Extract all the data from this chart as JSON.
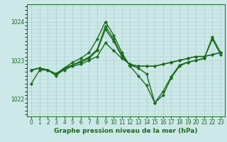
{
  "title": "Graphe pression niveau de la mer (hPa)",
  "bg_color": "#cce8e8",
  "line_color": "#1a6b1a",
  "grid_color": "#aacfcf",
  "xlim": [
    -0.5,
    23.5
  ],
  "ylim": [
    1021.55,
    1024.45
  ],
  "yticks": [
    1022,
    1023,
    1024
  ],
  "xticks": [
    0,
    1,
    2,
    3,
    4,
    5,
    6,
    7,
    8,
    9,
    10,
    11,
    12,
    13,
    14,
    15,
    16,
    17,
    18,
    19,
    20,
    21,
    22,
    23
  ],
  "series": [
    {
      "x": [
        0,
        1,
        2,
        3,
        4,
        5,
        6,
        7,
        8,
        9,
        10,
        11,
        12,
        13,
        14,
        15,
        16,
        17,
        18,
        19,
        20,
        21,
        22,
        23
      ],
      "y": [
        1022.75,
        1022.8,
        1022.75,
        1022.65,
        1022.75,
        1022.85,
        1022.9,
        1023.0,
        1023.1,
        1023.45,
        1023.25,
        1023.05,
        1022.9,
        1022.85,
        1022.85,
        1022.85,
        1022.9,
        1022.95,
        1023.0,
        1023.05,
        1023.1,
        1023.1,
        1023.15,
        1023.2
      ]
    },
    {
      "x": [
        0,
        1,
        2,
        3,
        4,
        5,
        6,
        7,
        8,
        9,
        10,
        11,
        12,
        13,
        14,
        15,
        16,
        17,
        18,
        19,
        20,
        21,
        22,
        23
      ],
      "y": [
        1022.75,
        1022.8,
        1022.75,
        1022.65,
        1022.8,
        1022.95,
        1023.05,
        1023.2,
        1023.55,
        1024.0,
        1023.65,
        1023.2,
        1022.85,
        1022.6,
        1022.35,
        1021.9,
        1022.1,
        1022.55,
        1022.85,
        1022.95,
        1023.0,
        1023.05,
        1023.6,
        1023.2
      ]
    },
    {
      "x": [
        0,
        1,
        2,
        3,
        4,
        5,
        6,
        7,
        8,
        9,
        10,
        11,
        12,
        13,
        14,
        15,
        16,
        17,
        18,
        19,
        20,
        21,
        22,
        23
      ],
      "y": [
        1022.75,
        1022.8,
        1022.75,
        1022.65,
        1022.8,
        1022.88,
        1022.95,
        1023.05,
        1023.25,
        1023.8,
        1023.5,
        1023.1,
        1022.88,
        1022.85,
        1022.85,
        1022.85,
        1022.9,
        1022.95,
        1023.0,
        1023.05,
        1023.1,
        1023.1,
        1023.15,
        1023.2
      ]
    },
    {
      "x": [
        0,
        1,
        2,
        3,
        4,
        5,
        6,
        7,
        8,
        9,
        10,
        11,
        12,
        13,
        14,
        15,
        16,
        17,
        18,
        19,
        20,
        21,
        22,
        23
      ],
      "y": [
        1022.4,
        1022.75,
        1022.75,
        1022.6,
        1022.78,
        1022.88,
        1022.98,
        1023.08,
        1023.28,
        1023.88,
        1023.55,
        1023.12,
        1022.88,
        1022.8,
        1022.65,
        1021.9,
        1022.2,
        1022.58,
        1022.88,
        1022.95,
        1023.0,
        1023.05,
        1023.55,
        1023.15
      ]
    }
  ],
  "marker": "D",
  "markersize": 2.2,
  "linewidth": 1.0,
  "tick_fontsize": 5.5,
  "label_fontsize": 6.5
}
